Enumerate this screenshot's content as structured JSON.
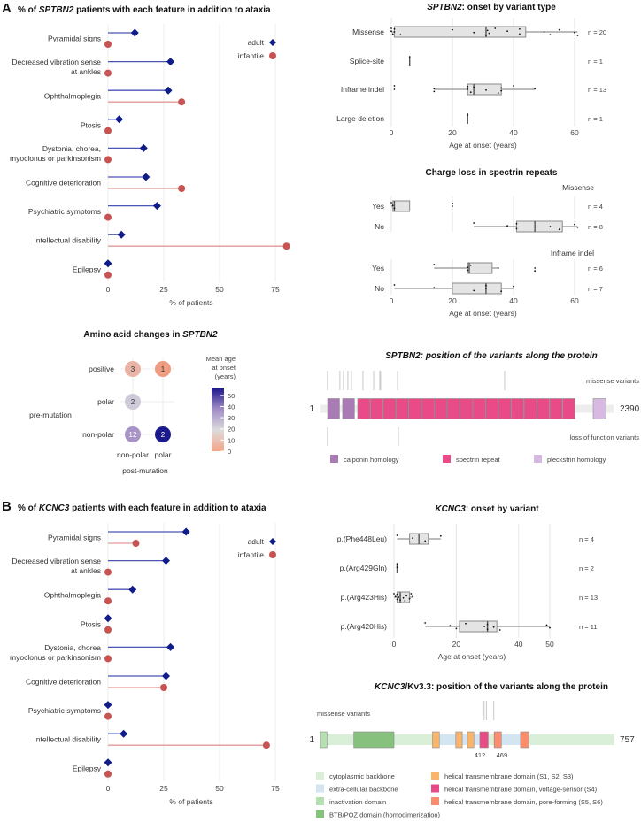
{
  "figure": {
    "panel_a_letter": "A",
    "panel_b_letter": "B"
  },
  "chart_data": [
    {
      "type": "lollipop",
      "title": [
        "% of ",
        "SPTBN2",
        " patients with each feature in addition to ataxia"
      ],
      "categories": [
        [
          "Pyramidal signs"
        ],
        [
          "Decreased vibration sense",
          "at ankles"
        ],
        [
          "Ophthalmoplegia"
        ],
        [
          "Ptosis"
        ],
        [
          "Dystonia, chorea,",
          "myoclonus or parkinsonism"
        ],
        [
          "Cognitive deterioration"
        ],
        [
          "Psychiatric symptoms"
        ],
        [
          "Intellectual disability"
        ],
        [
          "Epilepsy"
        ]
      ],
      "series": [
        {
          "name": "adult",
          "color": "#0f1c8a",
          "line": "#4a55b5",
          "values": [
            12,
            28,
            27,
            5,
            16,
            17,
            22,
            6,
            0
          ]
        },
        {
          "name": "infantile",
          "color": "#c85353",
          "line": "#e39a9a",
          "values": [
            0,
            0,
            33,
            0,
            0,
            33,
            0,
            80,
            0
          ]
        }
      ],
      "xlabel": "% of patients",
      "xticks": [
        0,
        25,
        50,
        75
      ],
      "xlim": [
        0,
        80
      ],
      "legend": "top-right"
    },
    {
      "type": "boxplot",
      "title": [
        "",
        "SPTBN2",
        ": onset by variant type"
      ],
      "xlabel": "Age at onset (years)",
      "xticks": [
        0,
        20,
        40,
        60
      ],
      "rows": [
        {
          "label": "Missense",
          "n": "n = 20",
          "min": 0,
          "q1": 1,
          "median": 31,
          "q3": 44,
          "max": 61,
          "points": [
            0,
            0,
            0.5,
            1,
            1,
            3,
            20,
            27,
            31,
            31.5,
            32,
            34,
            38,
            42,
            42,
            50,
            52,
            55,
            60,
            61
          ]
        },
        {
          "label": "Splice-site",
          "n": "n = 1",
          "min": 6,
          "q1": 6,
          "median": 6,
          "q3": 6,
          "max": 6,
          "points": [
            6
          ]
        },
        {
          "label": "Inframe indel",
          "n": "n = 13",
          "min": 14,
          "q1": 25,
          "median": 27,
          "q3": 36,
          "max": 47,
          "outliers": [
            1
          ],
          "points": [
            1,
            14,
            14,
            25,
            25,
            26,
            27,
            31,
            35,
            36,
            36,
            40,
            47
          ]
        },
        {
          "label": "Large deletion",
          "n": "n = 1",
          "min": 25,
          "q1": 25,
          "median": 25,
          "q3": 25,
          "max": 25,
          "points": [
            25
          ]
        }
      ]
    },
    {
      "type": "boxplot",
      "title": [
        "",
        "Charge loss in spectrin repeats",
        ""
      ],
      "xlabel": "Age at onset (years)",
      "xticks": [
        0,
        20,
        40,
        60
      ],
      "facets": [
        {
          "label": "Missense",
          "rows": [
            {
              "label": "Yes",
              "n": "n = 4",
              "min": 0,
              "q1": 0.5,
              "median": 1,
              "q3": 6,
              "max": 6,
              "outliers": [
                20
              ],
              "points": [
                0,
                0.5,
                1,
                20
              ]
            },
            {
              "label": "No",
              "n": "n = 8",
              "min": 27,
              "q1": 41,
              "median": 47,
              "q3": 56,
              "max": 61,
              "points": [
                27,
                38,
                41,
                41,
                52,
                55,
                60,
                61
              ]
            }
          ]
        },
        {
          "label": "Inframe indel",
          "rows": [
            {
              "label": "Yes",
              "n": "n = 6",
              "min": 14,
              "q1": 25,
              "median": 25.5,
              "q3": 33,
              "max": 35,
              "outliers": [
                47
              ],
              "points": [
                14,
                25,
                25,
                26,
                35,
                47
              ]
            },
            {
              "label": "No",
              "n": "n = 7",
              "min": 1,
              "q1": 20,
              "median": 31,
              "q3": 36,
              "max": 40,
              "points": [
                1,
                14,
                27,
                31,
                31,
                36,
                40
              ]
            }
          ]
        }
      ]
    },
    {
      "type": "bubble",
      "title": [
        "Amino acid changes in ",
        "SPTBN2",
        ""
      ],
      "xlabel": "post-mutation",
      "ylabel": "pre-mutation",
      "x_categories": [
        "non-polar",
        "polar"
      ],
      "y_categories": [
        "positive",
        "polar",
        "non-polar"
      ],
      "cells": [
        {
          "x": "non-polar",
          "y": "positive",
          "count": "3",
          "color": "#e9b4a6"
        },
        {
          "x": "polar",
          "y": "positive",
          "count": "1",
          "color": "#ef9c82"
        },
        {
          "x": "non-polar",
          "y": "polar",
          "count": "2",
          "color": "#cfcad9"
        },
        {
          "x": "non-polar",
          "y": "non-polar",
          "count": "12",
          "color": "#a893c7"
        },
        {
          "x": "polar",
          "y": "non-polar",
          "count": "2",
          "color": "#1b1a8d"
        }
      ],
      "colorbar": {
        "title": [
          "Mean age",
          "at onset",
          "(years)"
        ],
        "ticks": [
          0,
          10,
          20,
          30,
          40,
          50
        ],
        "range": [
          0,
          57
        ],
        "colors": [
          "#f4a487",
          "#dcdcdc",
          "#9f8bc6",
          "#1a138c"
        ]
      }
    },
    {
      "type": "protein",
      "title": [
        "",
        "SPTBN2: position of the variants along the protein",
        ""
      ],
      "length": 2390,
      "start_label": "1",
      "end_label": "2390",
      "missense_label": "missense variants",
      "lof_label": "loss of function variants",
      "missense": [
        58,
        159,
        188,
        224,
        253,
        347,
        434,
        484,
        491,
        629,
        1502
      ],
      "lof": [
        58,
        636
      ],
      "backbone": [
        {
          "start": 1,
          "end": 2390,
          "color": "#ededed"
        }
      ],
      "domains": [
        {
          "start": 59,
          "end": 160,
          "type": 0
        },
        {
          "start": 181,
          "end": 282,
          "type": 0
        },
        {
          "start": 304,
          "end": 2080,
          "type": 1,
          "repeat": 17
        },
        {
          "start": 2224,
          "end": 2332,
          "type": 2
        }
      ],
      "legend": [
        {
          "label": "calponin homology",
          "color": "#a97ab4"
        },
        {
          "label": "spectrin repeat",
          "color": "#e84b88"
        },
        {
          "label": "pleckstrin homology",
          "color": "#d8b9e2"
        }
      ]
    },
    {
      "type": "lollipop",
      "title": [
        "% of ",
        "KCNC3",
        " patients with each feature in addition to ataxia"
      ],
      "categories": [
        [
          "Pyramidal signs"
        ],
        [
          "Decreased vibration sense",
          "at ankles"
        ],
        [
          "Ophthalmoplegia"
        ],
        [
          "Ptosis"
        ],
        [
          "Dystonia, chorea",
          "myoclonus or parkinsonism"
        ],
        [
          "Cognitive deterioration"
        ],
        [
          "Psychiatric symptoms"
        ],
        [
          "Intellectual disability"
        ],
        [
          "Epilepsy"
        ]
      ],
      "series": [
        {
          "name": "adult",
          "color": "#0f1c8a",
          "line": "#4a55b5",
          "values": [
            35,
            26,
            11,
            0,
            28,
            26,
            0,
            7,
            0
          ]
        },
        {
          "name": "infantile",
          "color": "#c85353",
          "line": "#e39a9a",
          "values": [
            12.5,
            0,
            0,
            0,
            0,
            25,
            0,
            71,
            0
          ]
        }
      ],
      "xlabel": "% of patients",
      "xticks": [
        0,
        25,
        50,
        75
      ],
      "xlim": [
        0,
        80
      ],
      "legend": "top-right"
    },
    {
      "type": "boxplot",
      "title": [
        "",
        "KCNC3",
        ": onset by variant"
      ],
      "xlabel": "Age at onset (years)",
      "xticks": [
        0,
        20,
        40,
        50
      ],
      "rows": [
        {
          "label": "p.(Phe448Leu)",
          "n": "n = 4",
          "min": 1,
          "q1": 5,
          "median": 8,
          "q3": 11,
          "max": 15,
          "points": [
            1,
            6,
            10,
            15
          ]
        },
        {
          "label": "p.(Arg429Gln)",
          "n": "n = 2",
          "min": 1,
          "q1": 1,
          "median": 1,
          "q3": 1,
          "max": 1,
          "points": [
            1,
            1
          ]
        },
        {
          "label": "p.(Arg423His)",
          "n": "n = 13",
          "min": 0,
          "q1": 1,
          "median": 2,
          "q3": 5,
          "max": 6,
          "points": [
            0,
            0.5,
            1,
            1,
            1.5,
            2,
            2,
            3,
            3.5,
            4,
            5,
            5.5,
            6
          ]
        },
        {
          "label": "p.(Arg420His)",
          "n": "n = 11",
          "min": 10,
          "q1": 21,
          "median": 30,
          "q3": 33,
          "max": 50,
          "points": [
            10,
            18,
            20,
            23,
            29,
            30,
            30,
            32,
            34,
            49,
            50
          ]
        }
      ]
    },
    {
      "type": "protein",
      "title": [
        "",
        "KCNC3",
        "/Kv3.3: position of the variants along the protein"
      ],
      "length": 757,
      "start_label": "1",
      "end_label": "757",
      "missense_label": "missense variants",
      "missense": [
        420,
        423,
        429,
        448
      ],
      "position_labels": [
        {
          "pos": 412,
          "label": "412"
        },
        {
          "pos": 469,
          "label": "469"
        }
      ],
      "backbone": [
        {
          "start": 1,
          "end": 309,
          "color": "#d9efd7"
        },
        {
          "start": 309,
          "end": 412,
          "color": "#d3e5f1"
        },
        {
          "start": 412,
          "end": 469,
          "color": "#d9efd7"
        },
        {
          "start": 469,
          "end": 517,
          "color": "#d3e5f1"
        },
        {
          "start": 517,
          "end": 757,
          "color": "#d9efd7"
        }
      ],
      "domains": [
        {
          "start": 1,
          "end": 19,
          "type": 2
        },
        {
          "start": 87,
          "end": 192,
          "type": 3
        },
        {
          "start": 290,
          "end": 309,
          "type": 4
        },
        {
          "start": 350,
          "end": 368,
          "type": 4
        },
        {
          "start": 380,
          "end": 398,
          "type": 4
        },
        {
          "start": 412,
          "end": 435,
          "type": 5
        },
        {
          "start": 449,
          "end": 469,
          "type": 6
        },
        {
          "start": 517,
          "end": 540,
          "type": 6
        }
      ],
      "legend": [
        {
          "label": "cytoplasmic backbone",
          "color": "#d9efd7"
        },
        {
          "label": "extra-cellular backbone",
          "color": "#d3e5f1"
        },
        {
          "label": "inactivation domain",
          "color": "#b5e0b0"
        },
        {
          "label": "BTB/POZ domain (homodimerization)",
          "color": "#86c17e"
        },
        {
          "label": "helical transmembrane domain (S1, S2, S3)",
          "color": "#fbb56a"
        },
        {
          "label": "helical transmembrane domain, voltage-sensor (S4)",
          "color": "#e84b88"
        },
        {
          "label": "helical transmembrane domain, pore-forming (S5, S6)",
          "color": "#fb8d6e"
        }
      ]
    }
  ]
}
